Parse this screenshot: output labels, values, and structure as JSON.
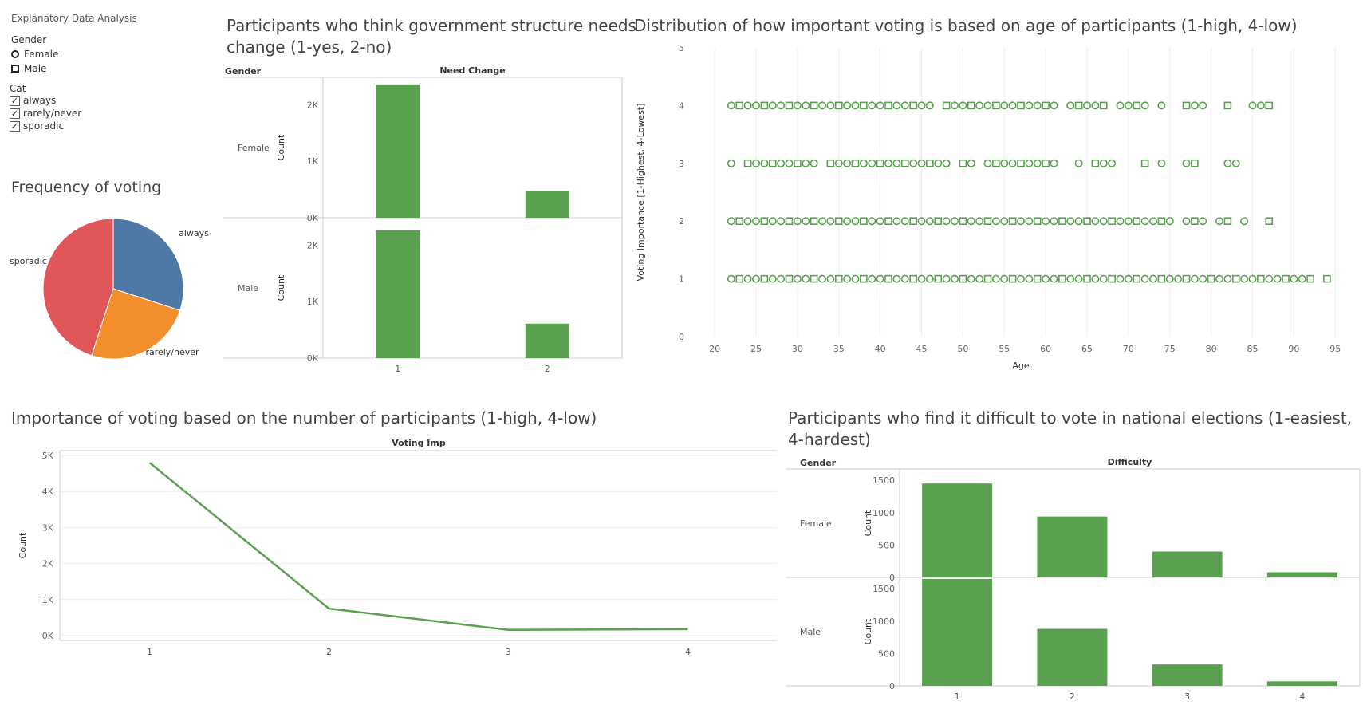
{
  "dashboard": {
    "title": "Explanatory Data Analysis"
  },
  "filters": {
    "gender": {
      "title": "Gender",
      "items": [
        {
          "label": "Female",
          "shape": "circle"
        },
        {
          "label": "Male",
          "shape": "square"
        }
      ]
    },
    "cat": {
      "title": "Cat",
      "items": [
        {
          "label": "always",
          "checked": true
        },
        {
          "label": "rarely/never",
          "checked": true
        },
        {
          "label": "sporadic",
          "checked": true
        }
      ]
    }
  },
  "colors": {
    "green": "#59a14f",
    "blue": "#4e79a7",
    "orange": "#f28e2b",
    "red": "#e15759",
    "grid": "#eeeeee"
  },
  "titles": {
    "pie": "Frequency of voting",
    "gov_line1": "Participants who think government structure needs",
    "gov_line2": "change (1-yes, 2-no)",
    "scatter": "Distribution of how important voting is based on age of participants (1-high, 4-low)",
    "line": "Importance of voting based on the number of participants (1-high, 4-low)",
    "diff_line1": "Participants who find it difficult to vote in national elections (1-easiest,",
    "diff_line2": "4-hardest)"
  },
  "chart_data": [
    {
      "id": "pie",
      "type": "pie",
      "title": "Frequency of voting",
      "slices": [
        {
          "label": "always",
          "value": 30,
          "color": "#4e79a7"
        },
        {
          "label": "rarely/never",
          "value": 25,
          "color": "#f28e2b"
        },
        {
          "label": "sporadic",
          "value": 45,
          "color": "#e15759"
        }
      ]
    },
    {
      "id": "gov",
      "type": "bar",
      "title": "Participants who think government structure needs change (1-yes, 2-no)",
      "column_header": "Need Change",
      "row_header": "Gender",
      "ylabel": "Count",
      "categories": [
        "1",
        "2"
      ],
      "yticks": [
        0,
        1000,
        2000
      ],
      "ytick_labels": [
        "0K",
        "1K",
        "2K"
      ],
      "ylim": [
        0,
        2400
      ],
      "panels": [
        {
          "name": "Female",
          "values": [
            2360,
            470
          ]
        },
        {
          "name": "Male",
          "values": [
            2260,
            610
          ]
        }
      ]
    },
    {
      "id": "scatter",
      "type": "scatter",
      "title": "Distribution of how important voting is based on age of participants (1-high, 4-low)",
      "xlabel": "Age",
      "ylabel": "Voting Importance [1-Highest, 4-Lowest]",
      "xlim": [
        17,
        97
      ],
      "ylim": [
        0,
        5
      ],
      "xticks": [
        20,
        25,
        30,
        35,
        40,
        45,
        50,
        55,
        60,
        65,
        70,
        75,
        80,
        85,
        90,
        95
      ],
      "yticks": [
        0,
        1,
        2,
        3,
        4,
        5
      ],
      "series": [
        {
          "y": 1,
          "ages": [
            22,
            23,
            24,
            25,
            26,
            27,
            28,
            29,
            30,
            31,
            32,
            33,
            34,
            35,
            36,
            37,
            38,
            39,
            40,
            41,
            42,
            43,
            44,
            45,
            46,
            47,
            48,
            49,
            50,
            51,
            52,
            53,
            54,
            55,
            56,
            57,
            58,
            59,
            60,
            61,
            62,
            63,
            64,
            65,
            66,
            67,
            68,
            69,
            70,
            71,
            72,
            73,
            74,
            75,
            76,
            77,
            78,
            79,
            80,
            81,
            82,
            83,
            84,
            85,
            86,
            87,
            88,
            89,
            90,
            91,
            92
          ],
          "square_ages": [
            94
          ]
        },
        {
          "y": 2,
          "ages": [
            22,
            23,
            24,
            25,
            26,
            27,
            28,
            29,
            30,
            31,
            32,
            33,
            34,
            35,
            36,
            37,
            38,
            39,
            40,
            41,
            42,
            43,
            44,
            45,
            46,
            47,
            48,
            49,
            50,
            51,
            52,
            53,
            54,
            55,
            56,
            57,
            58,
            59,
            60,
            61,
            62,
            63,
            64,
            65,
            66,
            67,
            68,
            69,
            70,
            71,
            72,
            73,
            74,
            75,
            77,
            78,
            79,
            81,
            82,
            84
          ],
          "square_ages": [
            87
          ]
        },
        {
          "y": 3,
          "ages": [
            22,
            24,
            25,
            26,
            27,
            28,
            29,
            30,
            31,
            32,
            34,
            35,
            36,
            37,
            38,
            39,
            40,
            41,
            42,
            43,
            44,
            45,
            46,
            47,
            48,
            50,
            51,
            53,
            54,
            55,
            56,
            57,
            58,
            59,
            60,
            61,
            64,
            66,
            67,
            68,
            72,
            74,
            77,
            78,
            82,
            83
          ],
          "square_ages": []
        },
        {
          "y": 4,
          "ages": [
            22,
            23,
            24,
            25,
            26,
            27,
            28,
            29,
            30,
            31,
            32,
            33,
            34,
            35,
            36,
            37,
            38,
            39,
            40,
            41,
            42,
            43,
            44,
            45,
            46,
            48,
            49,
            50,
            51,
            52,
            53,
            54,
            55,
            56,
            57,
            58,
            59,
            60,
            61,
            63,
            64,
            65,
            66,
            67,
            69,
            70,
            71,
            72,
            74,
            77,
            78,
            79,
            82,
            85,
            86,
            87
          ],
          "square_ages": []
        }
      ]
    },
    {
      "id": "line",
      "type": "line",
      "title": "Importance of voting based on the number of participants (1-high, 4-low)",
      "column_header": "Voting Imp",
      "ylabel": "Count",
      "categories": [
        "1",
        "2",
        "3",
        "4"
      ],
      "values": [
        4800,
        750,
        160,
        180
      ],
      "ylim": [
        0,
        5000
      ],
      "yticks": [
        0,
        1000,
        2000,
        3000,
        4000,
        5000
      ],
      "ytick_labels": [
        "0K",
        "1K",
        "2K",
        "3K",
        "4K",
        "5K"
      ]
    },
    {
      "id": "diff",
      "type": "bar",
      "title": "Participants who find it difficult to vote in national elections (1-easiest, 4-hardest)",
      "column_header": "Difficulty",
      "row_header": "Gender",
      "ylabel": "Count",
      "categories": [
        "1",
        "2",
        "3",
        "4"
      ],
      "yticks": [
        0,
        500,
        1000,
        1500
      ],
      "ytick_labels": [
        "0",
        "500",
        "1000",
        "1500"
      ],
      "ylim": [
        0,
        1600
      ],
      "panels": [
        {
          "name": "Female",
          "values": [
            1450,
            940,
            400,
            80
          ]
        },
        {
          "name": "Male",
          "values": [
            1650,
            880,
            330,
            70
          ]
        }
      ]
    }
  ]
}
